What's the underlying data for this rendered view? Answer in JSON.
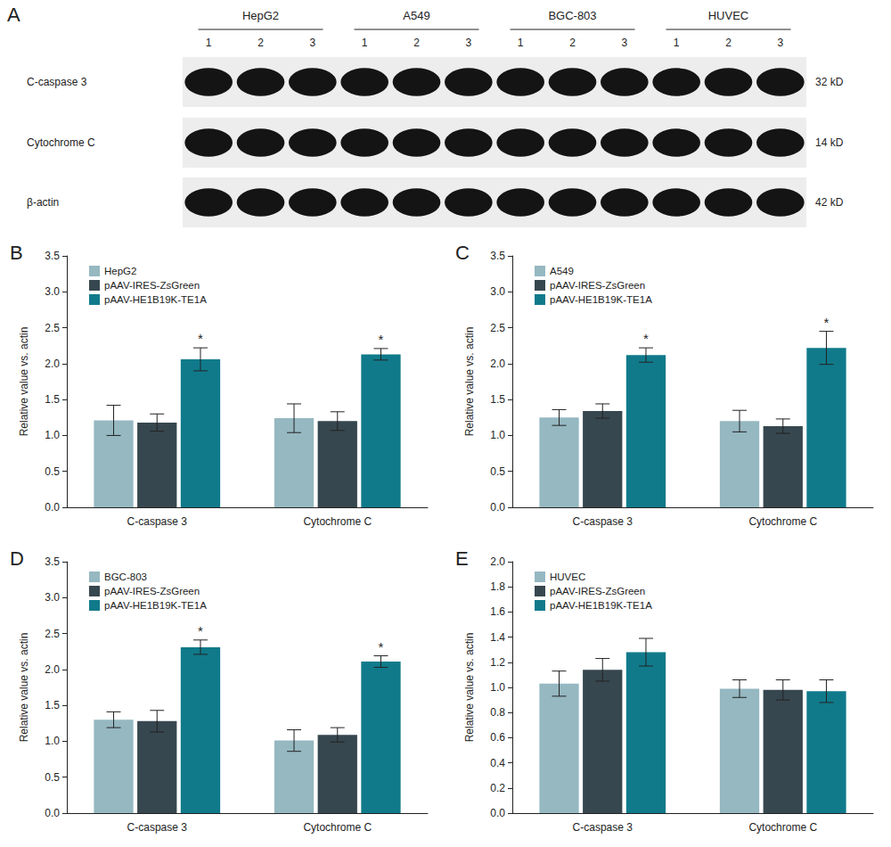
{
  "blot": {
    "label": "A",
    "groups": [
      "HepG2",
      "A549",
      "BGC-803",
      "HUVEC"
    ],
    "lanes": [
      "1",
      "2",
      "3"
    ],
    "rows": [
      {
        "name": "C-caspase 3",
        "size": "32 kD"
      },
      {
        "name": "Cytochrome C",
        "size": "14 kD"
      },
      {
        "name": "β-actin",
        "size": "42 kD"
      }
    ]
  },
  "chart_data": [
    {
      "type": "bar",
      "panel": "B",
      "categories": [
        "C-caspase 3",
        "Cytochrome C"
      ],
      "ylabel": "Relative value vs. actin",
      "ylim": [
        0,
        3.5
      ],
      "yticks": [
        {
          "value": 0,
          "label": "0.0"
        },
        0.5,
        {
          "value": 1,
          "label": "1.0"
        },
        1.5,
        {
          "value": 2,
          "label": "2.0"
        },
        2.5,
        {
          "value": 3,
          "label": "3.0"
        },
        3.5
      ],
      "grid": false,
      "legend": "upper left",
      "series": [
        {
          "name": "HepG2",
          "color": "#95b8c1",
          "values": [
            1.21,
            1.24
          ],
          "errors": [
            0.21,
            0.2
          ]
        },
        {
          "name": "pAAV-IRES-ZsGreen",
          "color": "#37474f",
          "values": [
            1.18,
            1.2
          ],
          "errors": [
            0.12,
            0.13
          ]
        },
        {
          "name": "pAAV-HE1B19K-TE1A",
          "color": "#107a8b",
          "values": [
            2.06,
            2.13
          ],
          "errors": [
            0.16,
            0.08
          ],
          "significance": [
            "*",
            "*"
          ]
        }
      ]
    },
    {
      "type": "bar",
      "panel": "C",
      "categories": [
        "C-caspase 3",
        "Cytochrome C"
      ],
      "ylabel": "Relative value vs. actin",
      "ylim": [
        0,
        3.5
      ],
      "yticks": [
        {
          "value": 0,
          "label": "0.0"
        },
        0.5,
        {
          "value": 1,
          "label": "1.0"
        },
        1.5,
        {
          "value": 2,
          "label": "2.0"
        },
        2.5,
        {
          "value": 3,
          "label": "3.0"
        },
        3.5
      ],
      "grid": false,
      "legend": "upper left",
      "series": [
        {
          "name": "A549",
          "color": "#95b8c1",
          "values": [
            1.25,
            1.2
          ],
          "errors": [
            0.11,
            0.15
          ]
        },
        {
          "name": "pAAV-IRES-ZsGreen",
          "color": "#37474f",
          "values": [
            1.34,
            1.13
          ],
          "errors": [
            0.1,
            0.1
          ]
        },
        {
          "name": "pAAV-HE1B19K-TE1A",
          "color": "#107a8b",
          "values": [
            2.12,
            2.22
          ],
          "errors": [
            0.1,
            0.23
          ],
          "significance": [
            "*",
            "*"
          ]
        }
      ]
    },
    {
      "type": "bar",
      "panel": "D",
      "categories": [
        "C-caspase 3",
        "Cytochrome C"
      ],
      "ylabel": "Relative value vs. actin",
      "ylim": [
        0,
        3.5
      ],
      "yticks": [
        {
          "value": 0,
          "label": "0.0"
        },
        0.5,
        {
          "value": 1,
          "label": "1.0"
        },
        1.5,
        {
          "value": 2,
          "label": "2.0"
        },
        2.5,
        {
          "value": 3,
          "label": "3.0"
        },
        3.5
      ],
      "grid": false,
      "legend": "upper left",
      "series": [
        {
          "name": "BGC-803",
          "color": "#95b8c1",
          "values": [
            1.3,
            1.01
          ],
          "errors": [
            0.11,
            0.15
          ]
        },
        {
          "name": "pAAV-IRES-ZsGreen",
          "color": "#37474f",
          "values": [
            1.28,
            1.09
          ],
          "errors": [
            0.15,
            0.1
          ]
        },
        {
          "name": "pAAV-HE1B19K-TE1A",
          "color": "#107a8b",
          "values": [
            2.31,
            2.11
          ],
          "errors": [
            0.1,
            0.08
          ],
          "significance": [
            "*",
            "*"
          ]
        }
      ]
    },
    {
      "type": "bar",
      "panel": "E",
      "categories": [
        "C-caspase 3",
        "Cytochrome C"
      ],
      "ylabel": "Relative value vs. actin",
      "ylim": [
        0,
        2
      ],
      "yticks": [
        {
          "value": 0,
          "label": "0.0"
        },
        0.2,
        0.4,
        0.6,
        0.8,
        {
          "value": 1,
          "label": "1.0"
        },
        1.2,
        1.4,
        1.6,
        1.8,
        {
          "value": 2,
          "label": "2.0"
        }
      ],
      "grid": false,
      "legend": "upper left",
      "series": [
        {
          "name": "HUVEC",
          "color": "#95b8c1",
          "values": [
            1.03,
            0.99
          ],
          "errors": [
            0.1,
            0.07
          ]
        },
        {
          "name": "pAAV-IRES-ZsGreen",
          "color": "#37474f",
          "values": [
            1.14,
            0.98
          ],
          "errors": [
            0.09,
            0.08
          ]
        },
        {
          "name": "pAAV-HE1B19K-TE1A",
          "color": "#107a8b",
          "values": [
            1.28,
            0.97
          ],
          "errors": [
            0.11,
            0.09
          ]
        }
      ]
    }
  ]
}
